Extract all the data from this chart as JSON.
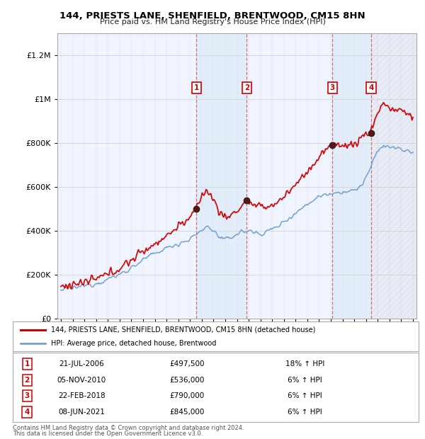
{
  "title": "144, PRIESTS LANE, SHENFIELD, BRENTWOOD, CM15 8HN",
  "subtitle": "Price paid vs. HM Land Registry's House Price Index (HPI)",
  "legend_line1": "144, PRIESTS LANE, SHENFIELD, BRENTWOOD, CM15 8HN (detached house)",
  "legend_line2": "HPI: Average price, detached house, Brentwood",
  "footer1": "Contains HM Land Registry data © Crown copyright and database right 2024.",
  "footer2": "This data is licensed under the Open Government Licence v3.0.",
  "transactions": [
    {
      "num": 1,
      "date": "21-JUL-2006",
      "price": "£497,500",
      "pct": "18%",
      "dir": "↑",
      "ref": "HPI",
      "year": 2006.55
    },
    {
      "num": 2,
      "date": "05-NOV-2010",
      "price": "£536,000",
      "pct": "6%",
      "dir": "↑",
      "ref": "HPI",
      "year": 2010.84
    },
    {
      "num": 3,
      "date": "22-FEB-2018",
      "price": "£790,000",
      "pct": "6%",
      "dir": "↑",
      "ref": "HPI",
      "year": 2018.14
    },
    {
      "num": 4,
      "date": "08-JUN-2021",
      "price": "£845,000",
      "pct": "6%",
      "dir": "↑",
      "ref": "HPI",
      "year": 2021.44
    }
  ],
  "hpi_color": "#6699cc",
  "price_color": "#cc0000",
  "sale_dot_color": "#333333",
  "vline_color": "#cc6666",
  "bg_shade_color": "#cce0f0",
  "ylim": [
    0,
    1300000
  ],
  "xlim_start": 1994.7,
  "xlim_end": 2025.3,
  "yticks": [
    0,
    200000,
    400000,
    600000,
    800000,
    1000000,
    1200000
  ]
}
